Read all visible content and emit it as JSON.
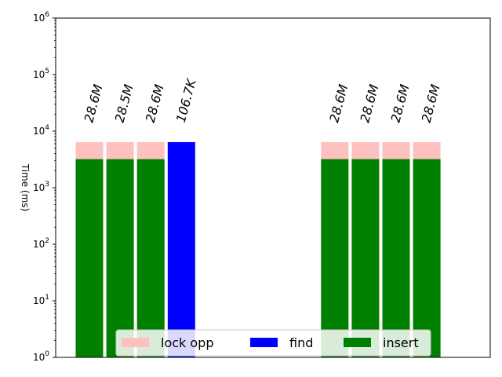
{
  "chart_data": {
    "type": "bar",
    "title": "",
    "xlabel": "",
    "ylabel": "Time (ms)",
    "yscale": "log",
    "ylim": [
      1,
      1000000
    ],
    "y_ticks": [
      {
        "value": 1,
        "label": "10^0"
      },
      {
        "value": 10,
        "label": "10^1"
      },
      {
        "value": 100,
        "label": "10^2"
      },
      {
        "value": 1000,
        "label": "10^3"
      },
      {
        "value": 10000,
        "label": "10^4"
      },
      {
        "value": 100000,
        "label": "10^5"
      },
      {
        "value": 1000000,
        "label": "10^6"
      }
    ],
    "categories": [
      "",
      "",
      "",
      "",
      "",
      "",
      "",
      "",
      "",
      "",
      "",
      ""
    ],
    "series": [
      {
        "name": "lock opp",
        "color": "#ffc0c0",
        "values": [
          3200,
          3200,
          3200,
          0,
          0,
          0,
          0,
          0,
          3200,
          3200,
          3200,
          3200
        ]
      },
      {
        "name": "find",
        "color": "#0000ff",
        "values": [
          0,
          0,
          0,
          6400,
          0,
          0,
          0,
          0,
          0,
          0,
          0,
          0
        ]
      },
      {
        "name": "insert",
        "color": "#008000",
        "values": [
          3200,
          3200,
          3200,
          0,
          0,
          0,
          0,
          0,
          3200,
          3200,
          3200,
          3200
        ]
      }
    ],
    "bar_annotations": [
      {
        "index": 0,
        "text": "28.6M"
      },
      {
        "index": 1,
        "text": "28.5M"
      },
      {
        "index": 2,
        "text": "28.6M"
      },
      {
        "index": 3,
        "text": "106.7K"
      },
      {
        "index": 8,
        "text": "28.6M"
      },
      {
        "index": 9,
        "text": "28.6M"
      },
      {
        "index": 10,
        "text": "28.6M"
      },
      {
        "index": 11,
        "text": "28.6M"
      }
    ],
    "legend": {
      "placement": "lower-center",
      "columns": 3,
      "entries": [
        "lock opp",
        "find",
        "insert"
      ]
    },
    "grid": false
  }
}
